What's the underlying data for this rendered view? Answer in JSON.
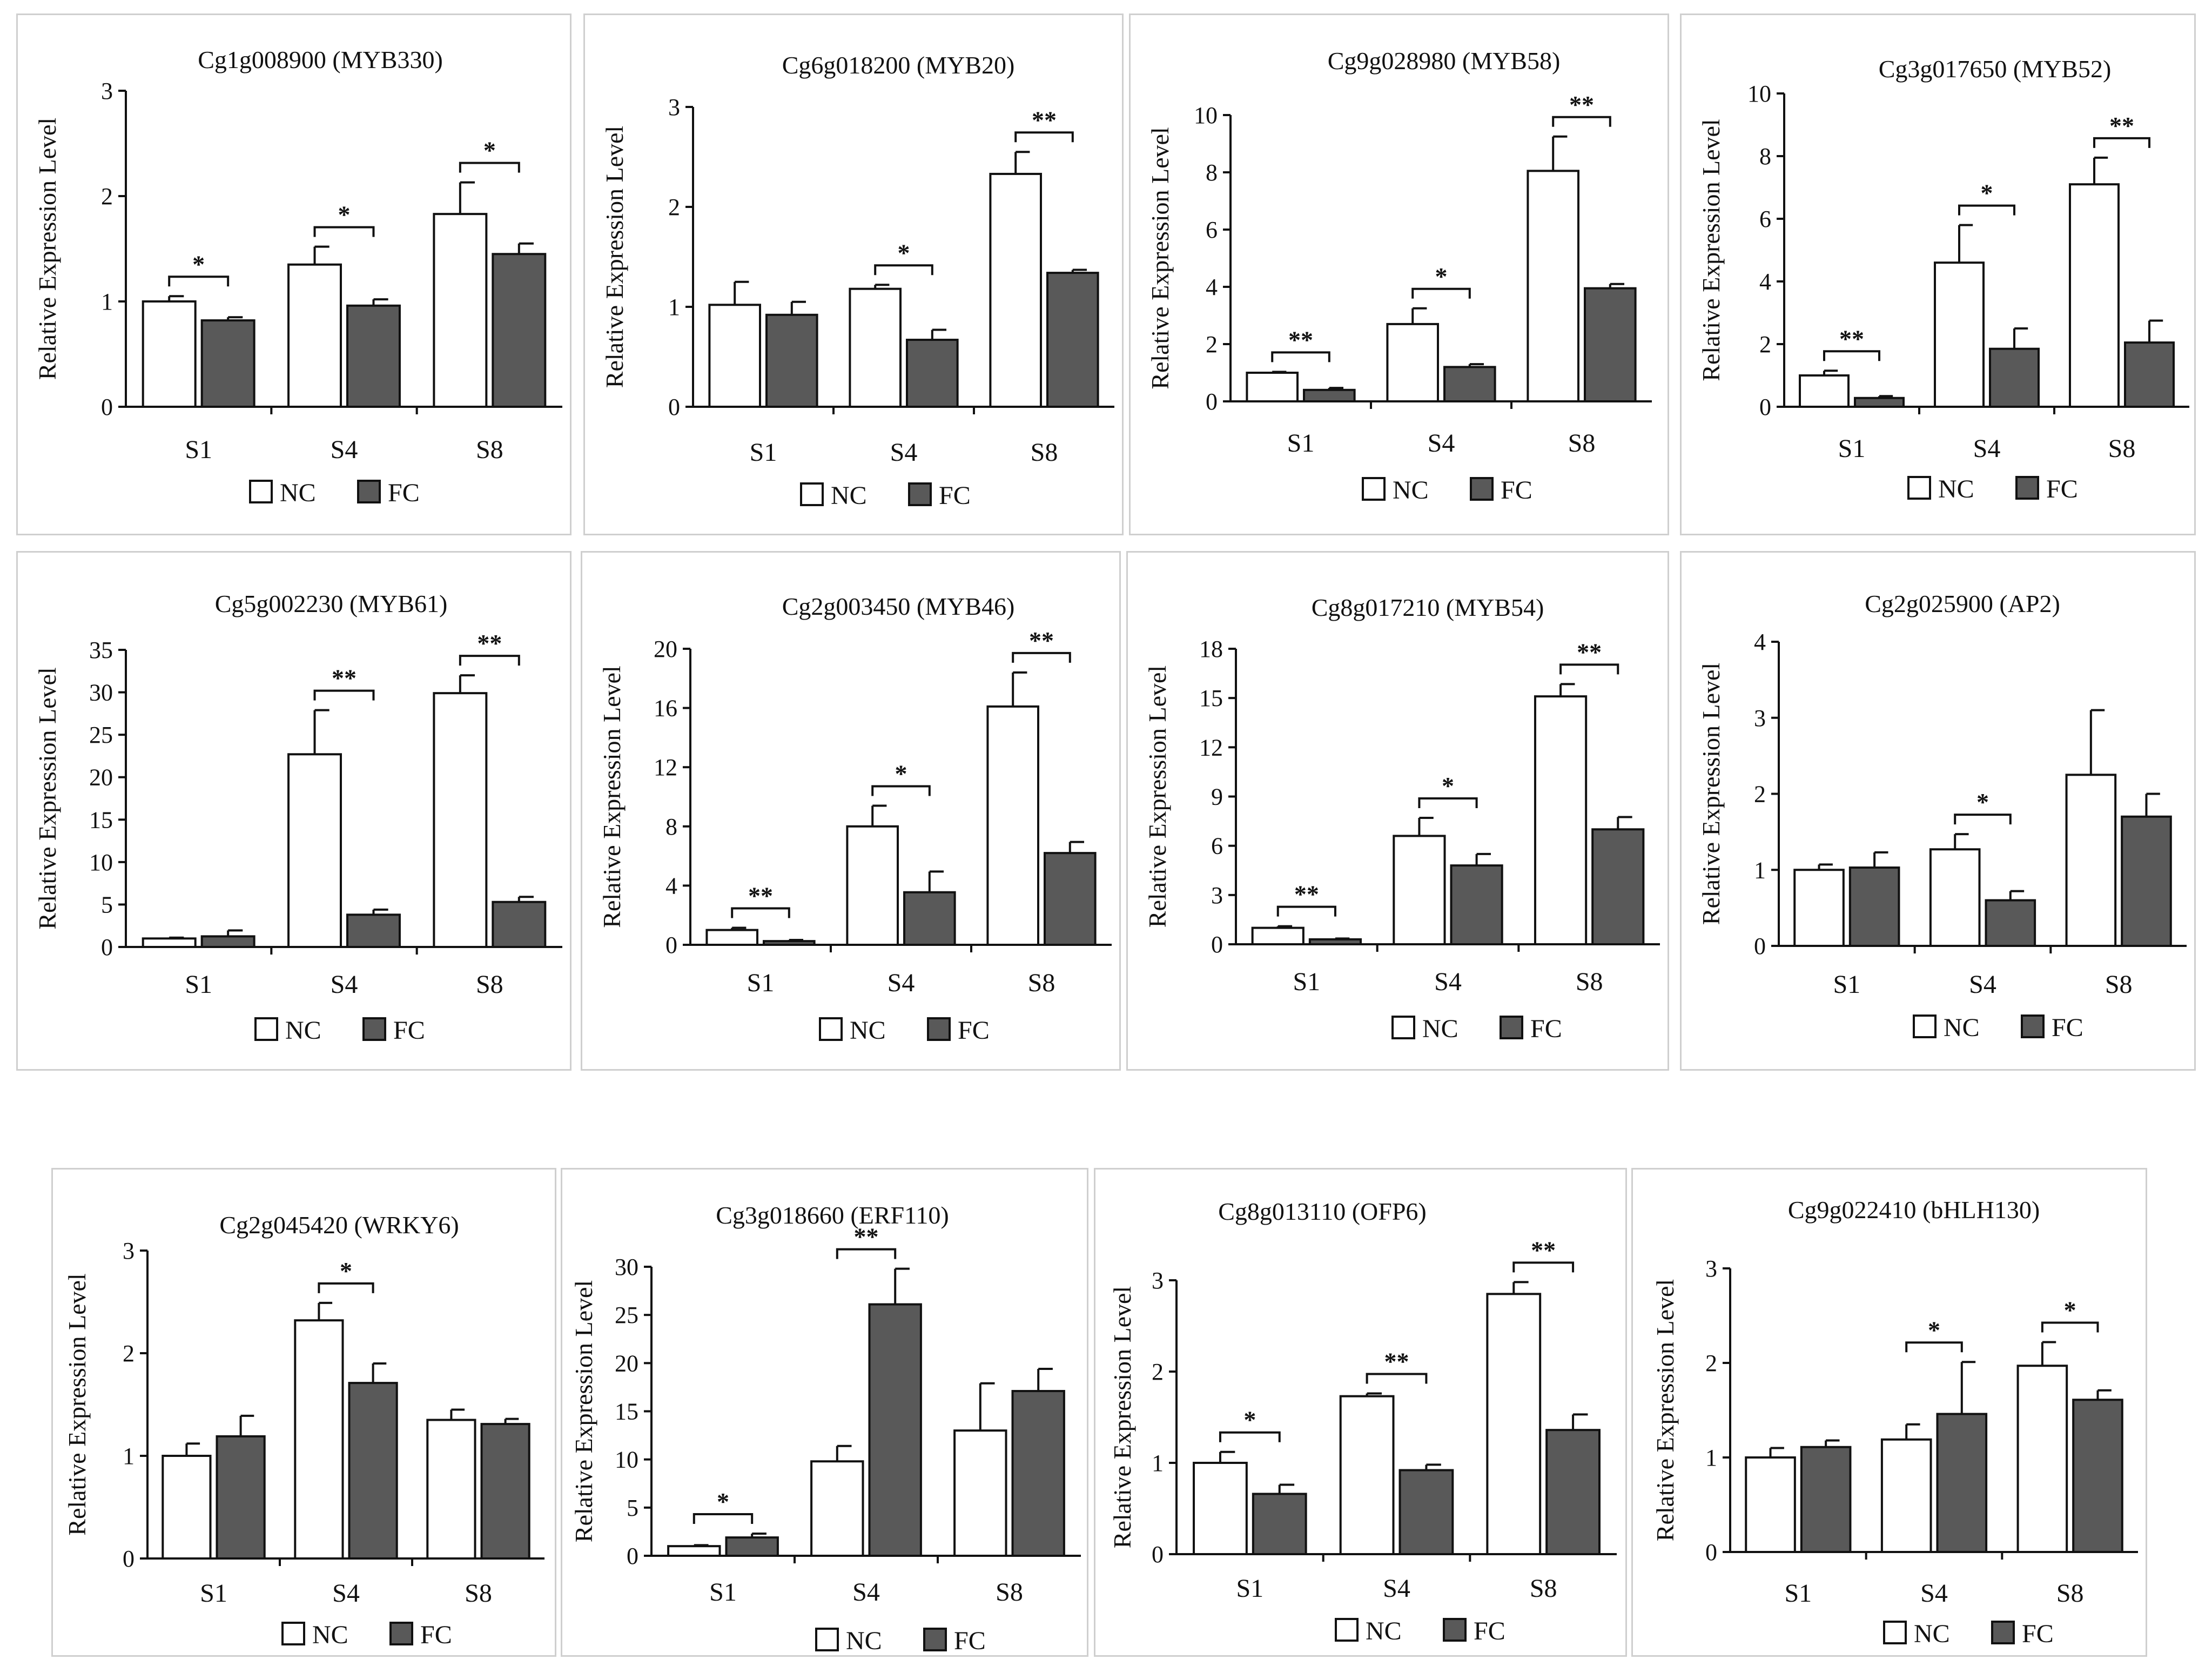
{
  "legend": {
    "nc": "NC",
    "fc": "FC",
    "nc_color": "#ffffff",
    "fc_color": "#595959"
  },
  "ylabel": "Relative Expression Level",
  "chart_data": [
    {
      "type": "bar",
      "title": "Cg1g008900 (MYB330)",
      "ylabel": "Relative Expression Level",
      "categories": [
        "S1",
        "S4",
        "S8"
      ],
      "ylim": [
        0,
        3
      ],
      "yticks": [
        "0",
        "1",
        "2",
        "3"
      ],
      "series": [
        {
          "name": "NC",
          "values": [
            1.0,
            1.35,
            1.83
          ],
          "errors": [
            0.05,
            0.17,
            0.3
          ]
        },
        {
          "name": "FC",
          "values": [
            0.82,
            0.96,
            1.45
          ],
          "errors": [
            0.03,
            0.06,
            0.1
          ]
        }
      ],
      "significance": [
        "*",
        "*",
        "*"
      ]
    },
    {
      "type": "bar",
      "title": "Cg6g018200 (MYB20)",
      "ylabel": "Relative Expression Level",
      "categories": [
        "S1",
        "S4",
        "S8"
      ],
      "ylim": [
        0,
        3
      ],
      "yticks": [
        "0",
        "1",
        "2",
        "3"
      ],
      "series": [
        {
          "name": "NC",
          "values": [
            1.02,
            1.18,
            2.33
          ],
          "errors": [
            0.23,
            0.04,
            0.22
          ]
        },
        {
          "name": "FC",
          "values": [
            0.92,
            0.67,
            1.34
          ],
          "errors": [
            0.13,
            0.1,
            0.03
          ]
        }
      ],
      "significance": [
        "",
        "*",
        "**"
      ]
    },
    {
      "type": "bar",
      "title": "Cg9g028980 (MYB58)",
      "ylabel": "Relative Expression Level",
      "categories": [
        "S1",
        "S4",
        "S8"
      ],
      "ylim": [
        0,
        10
      ],
      "yticks": [
        "0",
        "2",
        "4",
        "6",
        "8",
        "10"
      ],
      "series": [
        {
          "name": "NC",
          "values": [
            1.0,
            2.7,
            8.05
          ],
          "errors": [
            0.03,
            0.55,
            1.2
          ]
        },
        {
          "name": "FC",
          "values": [
            0.4,
            1.2,
            3.95
          ],
          "errors": [
            0.07,
            0.1,
            0.15
          ]
        }
      ],
      "significance": [
        "**",
        "*",
        "**"
      ]
    },
    {
      "type": "bar",
      "title": "Cg3g017650 (MYB52)",
      "ylabel": "Relative Expression Level",
      "categories": [
        "S1",
        "S4",
        "S8"
      ],
      "ylim": [
        0,
        10
      ],
      "yticks": [
        "0",
        "2",
        "4",
        "6",
        "8",
        "10"
      ],
      "series": [
        {
          "name": "NC",
          "values": [
            1.0,
            4.6,
            7.1
          ],
          "errors": [
            0.15,
            1.2,
            0.85
          ]
        },
        {
          "name": "FC",
          "values": [
            0.28,
            1.85,
            2.05
          ],
          "errors": [
            0.06,
            0.65,
            0.7
          ]
        }
      ],
      "significance": [
        "**",
        "*",
        "**"
      ]
    },
    {
      "type": "bar",
      "title": "Cg5g002230 (MYB61)",
      "ylabel": "Relative Expression Level",
      "categories": [
        "S1",
        "S4",
        "S8"
      ],
      "ylim": [
        0,
        35
      ],
      "yticks": [
        "0",
        "5",
        "10",
        "15",
        "20",
        "25",
        "30",
        "35"
      ],
      "series": [
        {
          "name": "NC",
          "values": [
            1.0,
            22.7,
            29.9
          ],
          "errors": [
            0.1,
            5.2,
            2.1
          ]
        },
        {
          "name": "FC",
          "values": [
            1.25,
            3.8,
            5.3
          ],
          "errors": [
            0.7,
            0.6,
            0.6
          ]
        }
      ],
      "significance": [
        "",
        "**",
        "**"
      ]
    },
    {
      "type": "bar",
      "title": "Cg2g003450 (MYB46)",
      "ylabel": "Relative Expression Level",
      "categories": [
        "S1",
        "S4",
        "S8"
      ],
      "ylim": [
        0,
        20
      ],
      "yticks": [
        "0",
        "4",
        "8",
        "12",
        "16",
        "20"
      ],
      "series": [
        {
          "name": "NC",
          "values": [
            1.0,
            8.0,
            16.1
          ],
          "errors": [
            0.15,
            1.4,
            2.3
          ]
        },
        {
          "name": "FC",
          "values": [
            0.25,
            3.55,
            6.2
          ],
          "errors": [
            0.08,
            1.4,
            0.75
          ]
        }
      ],
      "significance": [
        "**",
        "*",
        "**"
      ]
    },
    {
      "type": "bar",
      "title": "Cg8g017210 (MYB54)",
      "ylabel": "Relative Expression Level",
      "categories": [
        "S1",
        "S4",
        "S8"
      ],
      "ylim": [
        0,
        18
      ],
      "yticks": [
        "0",
        "3",
        "6",
        "9",
        "12",
        "15",
        "18"
      ],
      "series": [
        {
          "name": "NC",
          "values": [
            1.0,
            6.6,
            15.1
          ],
          "errors": [
            0.1,
            1.1,
            0.75
          ]
        },
        {
          "name": "FC",
          "values": [
            0.3,
            4.8,
            7.0
          ],
          "errors": [
            0.05,
            0.7,
            0.75
          ]
        }
      ],
      "significance": [
        "**",
        "*",
        "**"
      ]
    },
    {
      "type": "bar",
      "title": "Cg2g025900 (AP2)",
      "ylabel": "Relative Expression Level",
      "categories": [
        "S1",
        "S4",
        "S8"
      ],
      "ylim": [
        0,
        4
      ],
      "yticks": [
        "0",
        "1",
        "2",
        "3",
        "4"
      ],
      "series": [
        {
          "name": "NC",
          "values": [
            1.0,
            1.27,
            2.25
          ],
          "errors": [
            0.07,
            0.2,
            0.85
          ]
        },
        {
          "name": "FC",
          "values": [
            1.03,
            0.6,
            1.7
          ],
          "errors": [
            0.2,
            0.12,
            0.3
          ]
        }
      ],
      "significance": [
        "",
        "*",
        ""
      ]
    },
    {
      "type": "bar",
      "title": "Cg2g045420 (WRKY6)",
      "ylabel": "Relative Expression Level",
      "categories": [
        "S1",
        "S4",
        "S8"
      ],
      "ylim": [
        0,
        3
      ],
      "yticks": [
        "0",
        "1",
        "2",
        "3"
      ],
      "series": [
        {
          "name": "NC",
          "values": [
            1.0,
            2.32,
            1.35
          ],
          "errors": [
            0.12,
            0.17,
            0.1
          ]
        },
        {
          "name": "FC",
          "values": [
            1.19,
            1.71,
            1.31
          ],
          "errors": [
            0.2,
            0.19,
            0.05
          ]
        }
      ],
      "significance": [
        "",
        "*",
        ""
      ]
    },
    {
      "type": "bar",
      "title": "Cg3g018660 (ERF110)",
      "ylabel": "Relative Expression Level",
      "categories": [
        "S1",
        "S4",
        "S8"
      ],
      "ylim": [
        0,
        30
      ],
      "yticks": [
        "0",
        "5",
        "10",
        "15",
        "20",
        "25",
        "30"
      ],
      "series": [
        {
          "name": "NC",
          "values": [
            1.0,
            9.8,
            13.0
          ],
          "errors": [
            0.1,
            1.6,
            4.9
          ]
        },
        {
          "name": "FC",
          "values": [
            1.9,
            26.1,
            17.1
          ],
          "errors": [
            0.4,
            3.7,
            2.3
          ]
        }
      ],
      "significance": [
        "*",
        "**",
        ""
      ]
    },
    {
      "type": "bar",
      "title": "Cg8g013110 (OFP6)",
      "ylabel": "Relative Expression Level",
      "categories": [
        "S1",
        "S4",
        "S8"
      ],
      "ylim": [
        0,
        3
      ],
      "yticks": [
        "0",
        "1",
        "2",
        "3"
      ],
      "series": [
        {
          "name": "NC",
          "values": [
            1.0,
            1.73,
            2.85
          ],
          "errors": [
            0.12,
            0.03,
            0.13
          ]
        },
        {
          "name": "FC",
          "values": [
            0.66,
            0.92,
            1.36
          ],
          "errors": [
            0.1,
            0.06,
            0.17
          ]
        }
      ],
      "significance": [
        "*",
        "**",
        "**"
      ]
    },
    {
      "type": "bar",
      "title": "Cg9g022410 (bHLH130)",
      "ylabel": "Relative Expression Level",
      "categories": [
        "S1",
        "S4",
        "S8"
      ],
      "ylim": [
        0,
        3
      ],
      "yticks": [
        "0",
        "1",
        "2",
        "3"
      ],
      "series": [
        {
          "name": "NC",
          "values": [
            1.0,
            1.19,
            1.97
          ],
          "errors": [
            0.1,
            0.16,
            0.25
          ]
        },
        {
          "name": "FC",
          "values": [
            1.11,
            1.46,
            1.61
          ],
          "errors": [
            0.07,
            0.55,
            0.1
          ]
        }
      ],
      "significance": [
        "",
        "*",
        "*"
      ]
    }
  ]
}
